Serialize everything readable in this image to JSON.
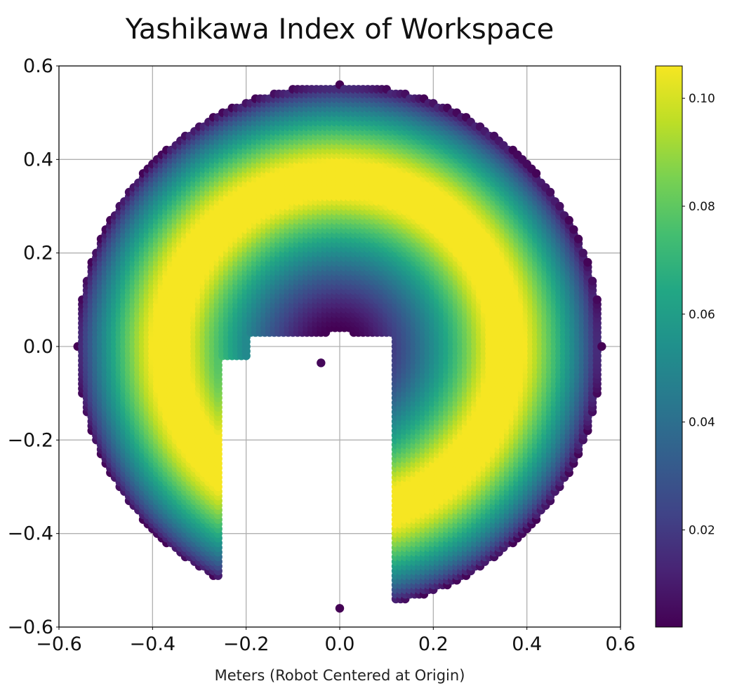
{
  "chart_data": {
    "type": "scatter",
    "title": "Yashikawa Index of Workspace",
    "xlabel": "Meters (Robot Centered at Origin)",
    "ylabel": "",
    "xlim": [
      -0.6,
      0.6
    ],
    "ylim": [
      -0.6,
      0.6
    ],
    "x_ticks": [
      -0.6,
      -0.4,
      -0.2,
      0.0,
      0.2,
      0.4,
      0.6
    ],
    "y_ticks": [
      -0.6,
      -0.4,
      -0.2,
      0.0,
      0.2,
      0.4,
      0.6
    ],
    "x_tick_labels": [
      "−0.6",
      "−0.4",
      "−0.2",
      "0.0",
      "0.2",
      "0.4",
      "0.6"
    ],
    "y_tick_labels": [
      "−0.6",
      "−0.4",
      "−0.2",
      "0.0",
      "0.2",
      "0.4",
      "0.6"
    ],
    "grid": true,
    "colormap": "viridis",
    "colorbar": {
      "range": [
        0.002,
        0.106
      ],
      "ticks": [
        0.02,
        0.04,
        0.06,
        0.08,
        0.1
      ],
      "tick_labels": [
        "0.02",
        "0.04",
        "0.06",
        "0.08",
        "0.10"
      ]
    },
    "workspace": {
      "inner_radius": 0.04,
      "outer_radius": 0.56,
      "peak_value": 0.106,
      "peak_inner_radius": 0.32,
      "peak_outer_radius": 0.4,
      "grid_step": 0.01,
      "excluded_regions": [
        {
          "x": [
            -0.26,
            0.12
          ],
          "y": [
            -0.56,
            -0.02
          ]
        },
        {
          "x": [
            -0.2,
            0.12
          ],
          "y": [
            -0.03,
            0.03
          ]
        }
      ],
      "isolated_point": {
        "x": -0.04,
        "y": -0.035,
        "value": 0.004
      }
    }
  }
}
